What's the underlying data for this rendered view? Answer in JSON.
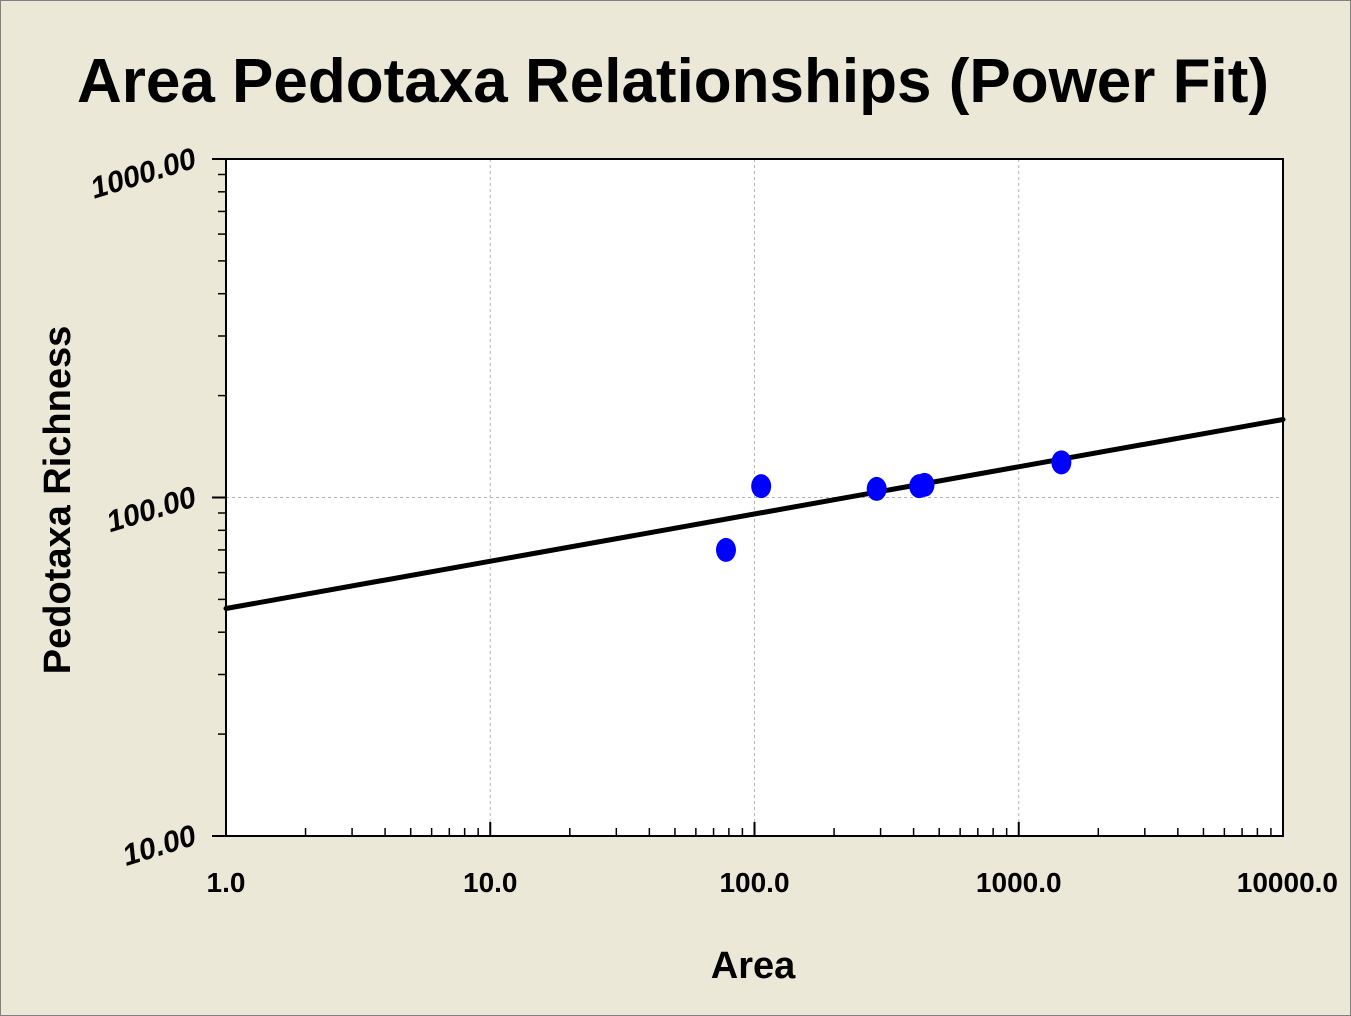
{
  "chart_data": {
    "type": "scatter",
    "title": "Area Pedotaxa Relationships (Power Fit)",
    "xlabel": "Area",
    "ylabel": "Pedotaxa Richness",
    "x_scale": "log",
    "y_scale": "log",
    "xlim": [
      1.0,
      10000.0
    ],
    "ylim": [
      10.0,
      1000.0
    ],
    "x_ticks": [
      1.0,
      10.0,
      100.0,
      1000.0,
      10000.0
    ],
    "x_tick_labels": [
      "1.0",
      "10.0",
      "100.0",
      "1000.0",
      "10000.0"
    ],
    "y_ticks": [
      10.0,
      100.0,
      1000.0
    ],
    "y_tick_labels": [
      "10.00",
      "100.00",
      "1000.00"
    ],
    "grid": true,
    "series": [
      {
        "type": "scatter",
        "color": "#0000ff",
        "x": [
          78,
          106,
          290,
          420,
          440,
          1450
        ],
        "y": [
          70,
          108,
          106,
          108,
          109,
          127
        ]
      }
    ],
    "fit": {
      "type": "line",
      "color": "#000000",
      "x": [
        1.0,
        10000.0
      ],
      "y": [
        47,
        170
      ]
    }
  },
  "colors": {
    "background": "#ebe8d8",
    "plot_area": "#ffffff",
    "points": "#0000ff",
    "fit_line": "#000000",
    "grid": "#b4b4b4"
  }
}
